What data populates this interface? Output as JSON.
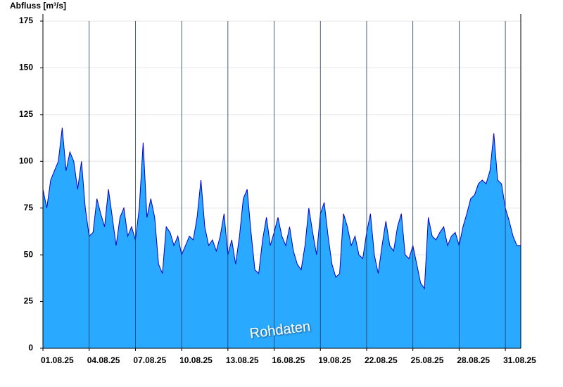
{
  "chart_data": {
    "type": "area",
    "title": "Abfluss [m³/s]",
    "annotation": "Rohdaten",
    "x": [
      0,
      0.25,
      0.5,
      0.75,
      1,
      1.25,
      1.5,
      1.75,
      2,
      2.25,
      2.5,
      2.75,
      3,
      3.25,
      3.5,
      3.75,
      4,
      4.25,
      4.5,
      4.75,
      5,
      5.25,
      5.5,
      5.75,
      6,
      6.25,
      6.5,
      6.75,
      7,
      7.25,
      7.5,
      7.75,
      8,
      8.25,
      8.5,
      8.75,
      9,
      9.25,
      9.5,
      9.75,
      10,
      10.25,
      10.5,
      10.75,
      11,
      11.25,
      11.5,
      11.75,
      12,
      12.25,
      12.5,
      12.75,
      13,
      13.25,
      13.5,
      13.75,
      14,
      14.25,
      14.5,
      14.75,
      15,
      15.25,
      15.5,
      15.75,
      16,
      16.25,
      16.5,
      16.75,
      17,
      17.25,
      17.5,
      17.75,
      18,
      18.25,
      18.5,
      18.75,
      19,
      19.25,
      19.5,
      19.75,
      20,
      20.25,
      20.5,
      20.75,
      21,
      21.25,
      21.5,
      21.75,
      22,
      22.25,
      22.5,
      22.75,
      23,
      23.25,
      23.5,
      23.75,
      24,
      24.25,
      24.5,
      24.75,
      25,
      25.25,
      25.5,
      25.75,
      26,
      26.25,
      26.5,
      26.75,
      27,
      27.25,
      27.5,
      27.75,
      28,
      28.25,
      28.5,
      28.75,
      29,
      29.25,
      29.5,
      29.75,
      30,
      30.25,
      30.5,
      30.75,
      31
    ],
    "series": [
      {
        "name": "Rohdaten",
        "color": "#29a9ff",
        "line_color": "#0000cc",
        "values": [
          85,
          75,
          90,
          95,
          100,
          118,
          95,
          105,
          100,
          85,
          100,
          75,
          60,
          62,
          80,
          72,
          65,
          85,
          70,
          55,
          70,
          75,
          60,
          65,
          58,
          75,
          110,
          70,
          80,
          70,
          45,
          40,
          65,
          62,
          55,
          60,
          50,
          55,
          60,
          58,
          70,
          90,
          65,
          55,
          58,
          52,
          60,
          72,
          50,
          58,
          45,
          60,
          80,
          85,
          62,
          42,
          40,
          58,
          70,
          55,
          62,
          70,
          60,
          55,
          65,
          52,
          45,
          42,
          55,
          75,
          62,
          50,
          72,
          78,
          60,
          45,
          38,
          40,
          72,
          65,
          55,
          60,
          50,
          48,
          62,
          72,
          50,
          40,
          55,
          68,
          55,
          52,
          65,
          72,
          50,
          48,
          55,
          45,
          35,
          32,
          70,
          60,
          58,
          62,
          65,
          55,
          60,
          62,
          55,
          65,
          72,
          80,
          82,
          88,
          90,
          88,
          95,
          115,
          90,
          88,
          75,
          68,
          60,
          55,
          55
        ]
      }
    ],
    "xlim": [
      0,
      31
    ],
    "xticks": [
      {
        "value": 0,
        "label": "01.08.25"
      },
      {
        "value": 3,
        "label": "04.08.25"
      },
      {
        "value": 6,
        "label": "07.08.25"
      },
      {
        "value": 9,
        "label": "10.08.25"
      },
      {
        "value": 12,
        "label": "13.08.25"
      },
      {
        "value": 15,
        "label": "16.08.25"
      },
      {
        "value": 18,
        "label": "19.08.25"
      },
      {
        "value": 21,
        "label": "22.08.25"
      },
      {
        "value": 24,
        "label": "25.08.25"
      },
      {
        "value": 27,
        "label": "28.08.25"
      },
      {
        "value": 30,
        "label": "31.08.25"
      }
    ],
    "ylim": [
      0,
      175
    ],
    "yticks": [
      0,
      25,
      50,
      75,
      100,
      125,
      150,
      175
    ],
    "grid": true
  }
}
